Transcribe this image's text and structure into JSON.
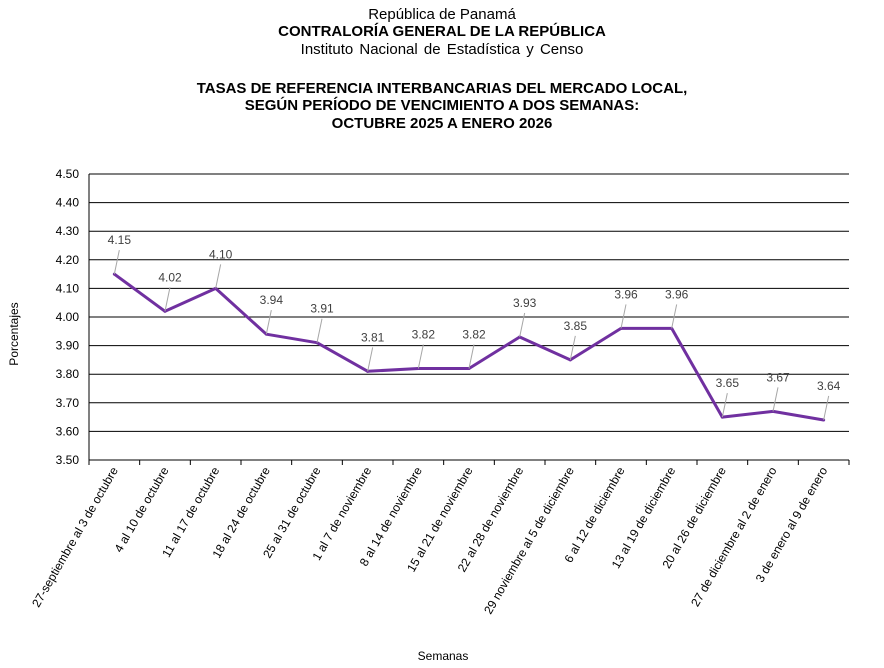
{
  "header": {
    "line1": "República de Panamá",
    "line2": "CONTRALORÍA GENERAL DE LA REPÚBLICA",
    "line3": "Instituto Nacional de Estadística y Censo"
  },
  "chart_data": {
    "type": "line",
    "title_lines": [
      "TASAS DE REFERENCIA INTERBANCARIAS DEL MERCADO LOCAL,",
      "SEGÚN PERÍODO DE VENCIMIENTO A DOS SEMANAS:",
      "OCTUBRE 2025 A ENERO 2026"
    ],
    "xlabel": "Semanas",
    "ylabel": "Porcentajes",
    "ylim": [
      3.5,
      4.5
    ],
    "yticks": [
      "3.50",
      "3.60",
      "3.70",
      "3.80",
      "3.90",
      "4.00",
      "4.10",
      "4.20",
      "4.30",
      "4.40",
      "4.50"
    ],
    "grid": true,
    "line_color": "#7030a0",
    "categories": [
      "27-septiembre al 3 de octubre",
      "4 al 10 de octubre",
      "11 al 17 de octubre",
      "18 al 24 de octubre",
      "25 al 31 de octubre",
      "1 al 7 de noviembre",
      "8 al 14 de noviembre",
      "15 al 21 de noviembre",
      "22 al 28 de noviembre",
      "29 noviembre al 5 de diciembre",
      "6 al 12 de diciembre",
      "13 al 19 de diciembre",
      "20 al 26 de diciembre",
      "27 de diciembre al 2 de enero",
      "3 de enero al 9 de enero"
    ],
    "values": [
      4.15,
      4.02,
      4.1,
      3.94,
      3.91,
      3.81,
      3.82,
      3.82,
      3.93,
      3.85,
      3.96,
      3.96,
      3.65,
      3.67,
      3.64
    ],
    "data_labels": [
      "4.15",
      "4.02",
      "4.10",
      "3.94",
      "3.91",
      "3.81",
      "3.82",
      "3.82",
      "3.93",
      "3.85",
      "3.96",
      "3.96",
      "3.65",
      "3.67",
      "3.64"
    ]
  }
}
